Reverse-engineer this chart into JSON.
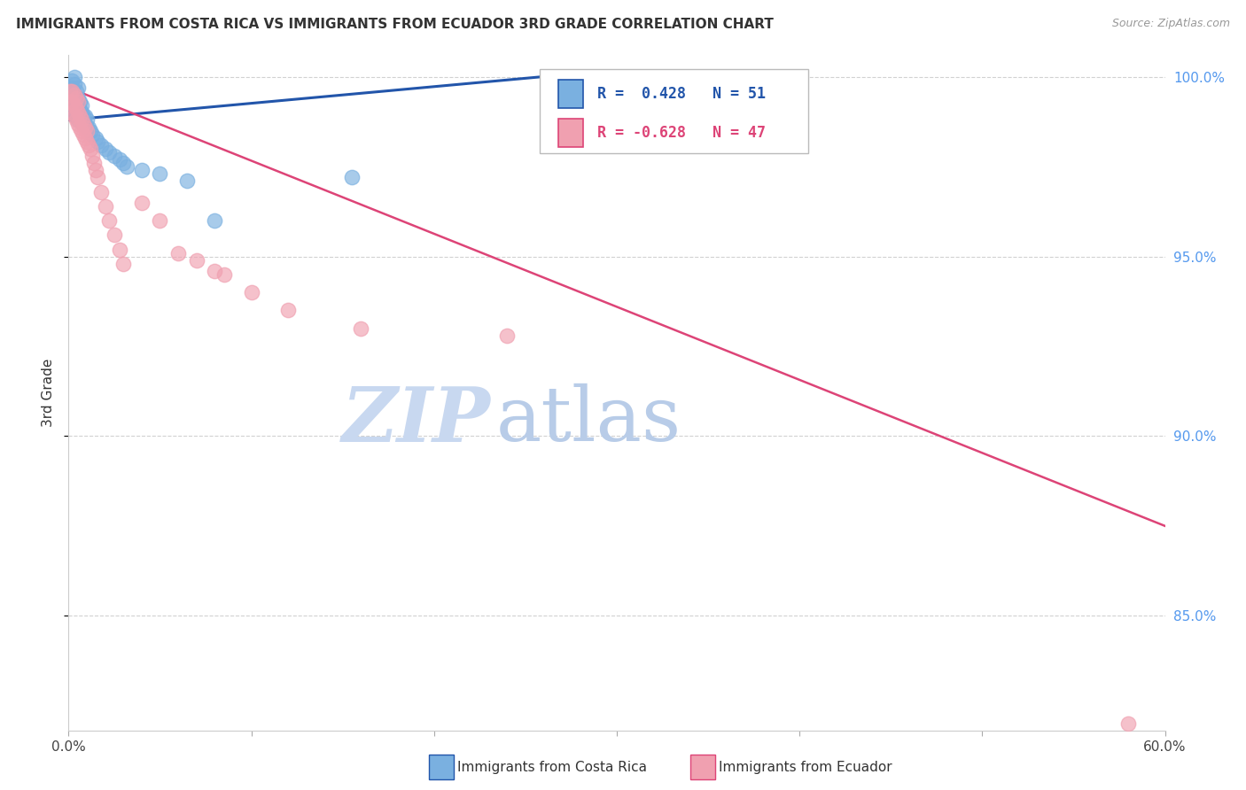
{
  "title": "IMMIGRANTS FROM COSTA RICA VS IMMIGRANTS FROM ECUADOR 3RD GRADE CORRELATION CHART",
  "source": "Source: ZipAtlas.com",
  "ylabel": "3rd Grade",
  "x_min": 0.0,
  "x_max": 0.6,
  "y_min": 0.818,
  "y_max": 1.006,
  "x_ticks": [
    0.0,
    0.1,
    0.2,
    0.3,
    0.4,
    0.5,
    0.6
  ],
  "x_tick_labels": [
    "0.0%",
    "",
    "",
    "",
    "",
    "",
    "60.0%"
  ],
  "y_ticks": [
    0.85,
    0.9,
    0.95,
    1.0
  ],
  "y_tick_labels": [
    "85.0%",
    "90.0%",
    "95.0%",
    "100.0%"
  ],
  "legend_cr_label": "Immigrants from Costa Rica",
  "legend_ec_label": "Immigrants from Ecuador",
  "legend_cr_r": "R =  0.428",
  "legend_cr_n": "N = 51",
  "legend_ec_r": "R = -0.628",
  "legend_ec_n": "N = 47",
  "color_cr": "#7ab0e0",
  "color_ec": "#f0a0b0",
  "color_cr_line": "#2255aa",
  "color_ec_line": "#dd4477",
  "color_grid": "#cccccc",
  "color_right_axis": "#5599ee",
  "watermark_zip": "#c8d8f0",
  "watermark_atlas": "#b8cce8",
  "background": "#ffffff",
  "cr_line_x0": 0.0,
  "cr_line_y0": 0.988,
  "cr_line_x1": 0.28,
  "cr_line_y1": 1.001,
  "ec_line_x0": 0.0,
  "ec_line_y0": 0.997,
  "ec_line_x1": 0.6,
  "ec_line_y1": 0.875,
  "cr_x": [
    0.001,
    0.001,
    0.001,
    0.002,
    0.002,
    0.002,
    0.002,
    0.003,
    0.003,
    0.003,
    0.003,
    0.003,
    0.004,
    0.004,
    0.004,
    0.004,
    0.005,
    0.005,
    0.005,
    0.005,
    0.005,
    0.006,
    0.006,
    0.006,
    0.007,
    0.007,
    0.007,
    0.008,
    0.008,
    0.009,
    0.009,
    0.01,
    0.01,
    0.011,
    0.012,
    0.013,
    0.015,
    0.016,
    0.018,
    0.02,
    0.022,
    0.025,
    0.028,
    0.03,
    0.032,
    0.04,
    0.05,
    0.065,
    0.08,
    0.155,
    0.28
  ],
  "cr_y": [
    0.99,
    0.993,
    0.996,
    0.991,
    0.994,
    0.997,
    0.999,
    0.99,
    0.992,
    0.995,
    0.998,
    1.0,
    0.989,
    0.991,
    0.993,
    0.996,
    0.988,
    0.99,
    0.992,
    0.994,
    0.997,
    0.989,
    0.991,
    0.993,
    0.988,
    0.99,
    0.992,
    0.987,
    0.989,
    0.987,
    0.989,
    0.986,
    0.988,
    0.986,
    0.985,
    0.984,
    0.983,
    0.982,
    0.981,
    0.98,
    0.979,
    0.978,
    0.977,
    0.976,
    0.975,
    0.974,
    0.973,
    0.971,
    0.96,
    0.972,
    0.997
  ],
  "ec_x": [
    0.001,
    0.001,
    0.002,
    0.002,
    0.002,
    0.003,
    0.003,
    0.003,
    0.004,
    0.004,
    0.004,
    0.005,
    0.005,
    0.005,
    0.006,
    0.006,
    0.007,
    0.007,
    0.008,
    0.008,
    0.009,
    0.009,
    0.01,
    0.01,
    0.011,
    0.012,
    0.013,
    0.014,
    0.015,
    0.016,
    0.018,
    0.02,
    0.022,
    0.025,
    0.028,
    0.03,
    0.04,
    0.05,
    0.06,
    0.07,
    0.08,
    0.085,
    0.1,
    0.12,
    0.16,
    0.24,
    0.58
  ],
  "ec_y": [
    0.993,
    0.996,
    0.99,
    0.993,
    0.996,
    0.989,
    0.992,
    0.995,
    0.988,
    0.991,
    0.994,
    0.987,
    0.99,
    0.993,
    0.986,
    0.989,
    0.985,
    0.988,
    0.984,
    0.987,
    0.983,
    0.986,
    0.982,
    0.985,
    0.981,
    0.98,
    0.978,
    0.976,
    0.974,
    0.972,
    0.968,
    0.964,
    0.96,
    0.956,
    0.952,
    0.948,
    0.965,
    0.96,
    0.951,
    0.949,
    0.946,
    0.945,
    0.94,
    0.935,
    0.93,
    0.928,
    0.82
  ]
}
